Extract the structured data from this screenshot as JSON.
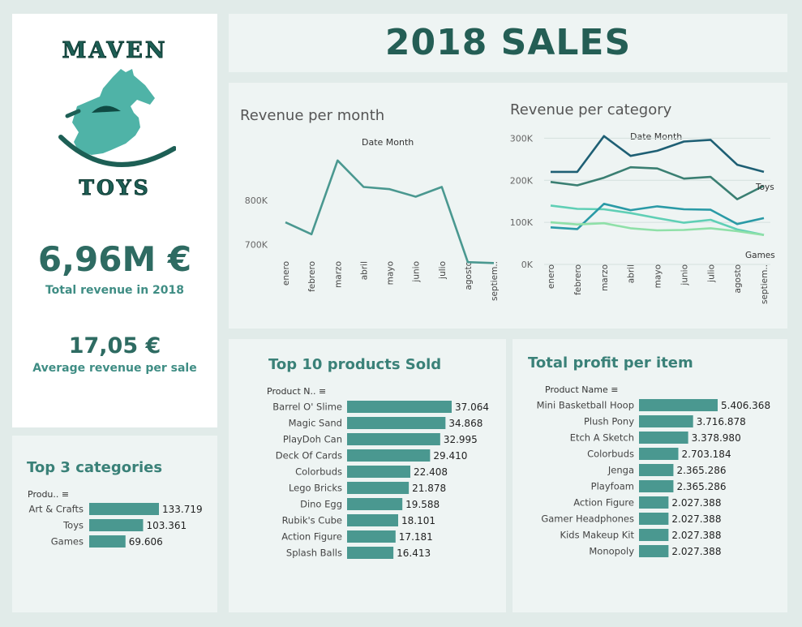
{
  "logo": {
    "top_word": "MAVEN",
    "bottom_word": "TOYS"
  },
  "kpis": {
    "total_revenue": "6,96M €",
    "total_revenue_label": "Total revenue in 2018",
    "avg_revenue": "17,05 €",
    "avg_revenue_label": "Average revenue per sale"
  },
  "header": {
    "title": "2018 SALES"
  },
  "colors": {
    "accent": "#4a9890",
    "dark": "#245e55",
    "bg": "#e1ebe9",
    "panel": "#eef4f3"
  },
  "chart_data": [
    {
      "type": "line",
      "title": "Revenue per month",
      "xlabel": "Date Month",
      "categories": [
        "enero",
        "febrero",
        "marzo",
        "abril",
        "mayo",
        "junio",
        "julio",
        "agosto",
        "septiem.."
      ],
      "series": [
        {
          "values": [
            750000,
            723000,
            890000,
            830000,
            825000,
            808000,
            830000,
            660000,
            658000
          ],
          "color": "#4a9890"
        }
      ],
      "yticks": [
        "700K",
        "800K"
      ],
      "ylim": [
        620000,
        930000
      ]
    },
    {
      "type": "line",
      "title": "Revenue per category",
      "xlabel": "Date Month",
      "categories": [
        "enero",
        "febrero",
        "marzo",
        "abril",
        "mayo",
        "junio",
        "julio",
        "agosto",
        "septiem.."
      ],
      "yticks": [
        "0K",
        "100K",
        "200K",
        "300K"
      ],
      "ylim": [
        0,
        320000
      ],
      "series": [
        {
          "values": [
            220000,
            220000,
            305000,
            258000,
            270000,
            292000,
            296000,
            237000,
            220000
          ],
          "color": "#1e5f74"
        },
        {
          "name": "Toys",
          "values": [
            196000,
            188000,
            206000,
            231000,
            228000,
            204000,
            208000,
            155000,
            187000
          ],
          "color": "#3a7f72"
        },
        {
          "values": [
            140000,
            132000,
            131000,
            122000,
            110000,
            99000,
            106000,
            83000,
            70000
          ],
          "color": "#5fcfb5"
        },
        {
          "values": [
            88000,
            84000,
            144000,
            129000,
            138000,
            131000,
            130000,
            96000,
            110000
          ],
          "color": "#2a9aa6"
        },
        {
          "name": "Games",
          "values": [
            100000,
            95000,
            98000,
            86000,
            81000,
            82000,
            86000,
            79000,
            70000
          ],
          "color": "#8fe0a8"
        }
      ]
    },
    {
      "type": "bar",
      "title": "Top 3 categories",
      "axis_label": "Produ..",
      "categories": [
        "Art & Crafts",
        "Toys",
        "Games"
      ],
      "values": [
        133719,
        103361,
        69606
      ],
      "labels": [
        "133.719",
        "103.361",
        "69.606"
      ]
    },
    {
      "type": "bar",
      "title": "Top 10 products Sold",
      "axis_label": "Product N..",
      "categories": [
        "Barrel O' Slime",
        "Magic Sand",
        "PlayDoh Can",
        "Deck Of Cards",
        "Colorbuds",
        "Lego Bricks",
        "Dino Egg",
        "Rubik's Cube",
        "Action Figure",
        "Splash Balls"
      ],
      "values": [
        37064,
        34868,
        32995,
        29410,
        22408,
        21878,
        19588,
        18101,
        17181,
        16413
      ],
      "labels": [
        "37.064",
        "34.868",
        "32.995",
        "29.410",
        "22.408",
        "21.878",
        "19.588",
        "18.101",
        "17.181",
        "16.413"
      ]
    },
    {
      "type": "bar",
      "title": "Total profit per item",
      "axis_label": "Product Name",
      "categories": [
        "Mini Basketball Hoop",
        "Plush Pony",
        "Etch A Sketch",
        "Colorbuds",
        "Jenga",
        "Playfoam",
        "Action Figure",
        "Gamer Headphones",
        "Kids Makeup Kit",
        "Monopoly"
      ],
      "values": [
        5406368,
        3716878,
        3378980,
        2703184,
        2365286,
        2365286,
        2027388,
        2027388,
        2027388,
        2027388
      ],
      "labels": [
        "5.406.368",
        "3.716.878",
        "3.378.980",
        "2.703.184",
        "2.365.286",
        "2.365.286",
        "2.027.388",
        "2.027.388",
        "2.027.388",
        "2.027.388"
      ]
    }
  ]
}
